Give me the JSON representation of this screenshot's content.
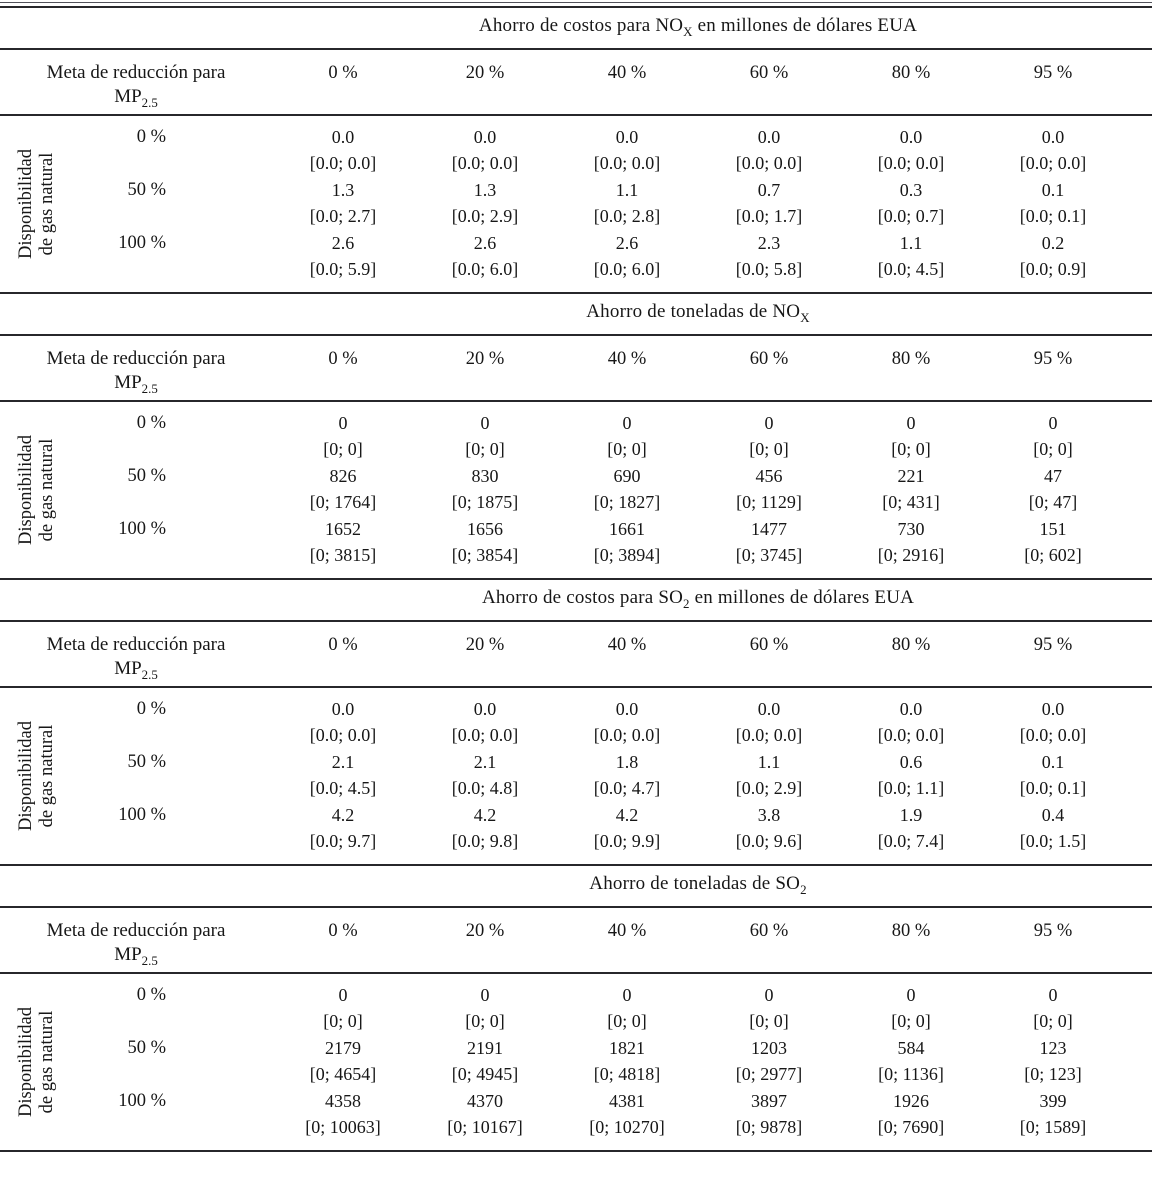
{
  "table": {
    "side_label": {
      "line1": "Disponibilidad",
      "line2": "de gas natural"
    },
    "row_header": {
      "line1": "Meta de reducción para",
      "base": "MP",
      "sub": "2.5"
    },
    "columns": [
      "0 %",
      "20 %",
      "40 %",
      "60 %",
      "80 %",
      "95 %"
    ],
    "sections": [
      {
        "id": "ahorro-costos-nox",
        "title": {
          "pre": "Ahorro de costos para NO",
          "sub": "X",
          "post": " en millones de dólares EUA"
        },
        "rows": [
          {
            "label": "0 %",
            "cells": [
              {
                "value": "0.0",
                "range": "[0.0; 0.0]"
              },
              {
                "value": "0.0",
                "range": "[0.0; 0.0]"
              },
              {
                "value": "0.0",
                "range": "[0.0; 0.0]"
              },
              {
                "value": "0.0",
                "range": "[0.0; 0.0]"
              },
              {
                "value": "0.0",
                "range": "[0.0; 0.0]"
              },
              {
                "value": "0.0",
                "range": "[0.0; 0.0]"
              }
            ]
          },
          {
            "label": "50 %",
            "cells": [
              {
                "value": "1.3",
                "range": "[0.0; 2.7]"
              },
              {
                "value": "1.3",
                "range": "[0.0; 2.9]"
              },
              {
                "value": "1.1",
                "range": "[0.0; 2.8]"
              },
              {
                "value": "0.7",
                "range": "[0.0; 1.7]"
              },
              {
                "value": "0.3",
                "range": "[0.0; 0.7]"
              },
              {
                "value": "0.1",
                "range": "[0.0; 0.1]"
              }
            ]
          },
          {
            "label": "100 %",
            "cells": [
              {
                "value": "2.6",
                "range": "[0.0; 5.9]"
              },
              {
                "value": "2.6",
                "range": "[0.0; 6.0]"
              },
              {
                "value": "2.6",
                "range": "[0.0; 6.0]"
              },
              {
                "value": "2.3",
                "range": "[0.0; 5.8]"
              },
              {
                "value": "1.1",
                "range": "[0.0; 4.5]"
              },
              {
                "value": "0.2",
                "range": "[0.0; 0.9]"
              }
            ]
          }
        ]
      },
      {
        "id": "ahorro-toneladas-nox",
        "title": {
          "pre": "Ahorro de toneladas de NO",
          "sub": "X",
          "post": ""
        },
        "rows": [
          {
            "label": "0 %",
            "cells": [
              {
                "value": "0",
                "range": "[0; 0]"
              },
              {
                "value": "0",
                "range": "[0; 0]"
              },
              {
                "value": "0",
                "range": "[0; 0]"
              },
              {
                "value": "0",
                "range": "[0; 0]"
              },
              {
                "value": "0",
                "range": "[0; 0]"
              },
              {
                "value": "0",
                "range": "[0; 0]"
              }
            ]
          },
          {
            "label": "50 %",
            "cells": [
              {
                "value": "826",
                "range": "[0; 1764]"
              },
              {
                "value": "830",
                "range": "[0; 1875]"
              },
              {
                "value": "690",
                "range": "[0; 1827]"
              },
              {
                "value": "456",
                "range": "[0; 1129]"
              },
              {
                "value": "221",
                "range": "[0; 431]"
              },
              {
                "value": "47",
                "range": "[0; 47]"
              }
            ]
          },
          {
            "label": "100 %",
            "cells": [
              {
                "value": "1652",
                "range": "[0; 3815]"
              },
              {
                "value": "1656",
                "range": "[0; 3854]"
              },
              {
                "value": "1661",
                "range": "[0; 3894]"
              },
              {
                "value": "1477",
                "range": "[0; 3745]"
              },
              {
                "value": "730",
                "range": "[0; 2916]"
              },
              {
                "value": "151",
                "range": "[0; 602]"
              }
            ]
          }
        ]
      },
      {
        "id": "ahorro-costos-so2",
        "title": {
          "pre": "Ahorro de costos para SO",
          "sub": "2",
          "post": " en millones de dólares EUA"
        },
        "rows": [
          {
            "label": "0 %",
            "cells": [
              {
                "value": "0.0",
                "range": "[0.0; 0.0]"
              },
              {
                "value": "0.0",
                "range": "[0.0; 0.0]"
              },
              {
                "value": "0.0",
                "range": "[0.0; 0.0]"
              },
              {
                "value": "0.0",
                "range": "[0.0; 0.0]"
              },
              {
                "value": "0.0",
                "range": "[0.0; 0.0]"
              },
              {
                "value": "0.0",
                "range": "[0.0; 0.0]"
              }
            ]
          },
          {
            "label": "50 %",
            "cells": [
              {
                "value": "2.1",
                "range": "[0.0; 4.5]"
              },
              {
                "value": "2.1",
                "range": "[0.0; 4.8]"
              },
              {
                "value": "1.8",
                "range": "[0.0; 4.7]"
              },
              {
                "value": "1.1",
                "range": "[0.0; 2.9]"
              },
              {
                "value": "0.6",
                "range": "[0.0; 1.1]"
              },
              {
                "value": "0.1",
                "range": "[0.0; 0.1]"
              }
            ]
          },
          {
            "label": "100 %",
            "cells": [
              {
                "value": "4.2",
                "range": "[0.0; 9.7]"
              },
              {
                "value": "4.2",
                "range": "[0.0; 9.8]"
              },
              {
                "value": "4.2",
                "range": "[0.0; 9.9]"
              },
              {
                "value": "3.8",
                "range": "[0.0; 9.6]"
              },
              {
                "value": "1.9",
                "range": "[0.0; 7.4]"
              },
              {
                "value": "0.4",
                "range": "[0.0; 1.5]"
              }
            ]
          }
        ]
      },
      {
        "id": "ahorro-toneladas-so2",
        "title": {
          "pre": "Ahorro de toneladas de SO",
          "sub": "2",
          "post": ""
        },
        "rows": [
          {
            "label": "0 %",
            "cells": [
              {
                "value": "0",
                "range": "[0; 0]"
              },
              {
                "value": "0",
                "range": "[0; 0]"
              },
              {
                "value": "0",
                "range": "[0; 0]"
              },
              {
                "value": "0",
                "range": "[0; 0]"
              },
              {
                "value": "0",
                "range": "[0; 0]"
              },
              {
                "value": "0",
                "range": "[0; 0]"
              }
            ]
          },
          {
            "label": "50 %",
            "cells": [
              {
                "value": "2179",
                "range": "[0; 4654]"
              },
              {
                "value": "2191",
                "range": "[0; 4945]"
              },
              {
                "value": "1821",
                "range": "[0; 4818]"
              },
              {
                "value": "1203",
                "range": "[0; 2977]"
              },
              {
                "value": "584",
                "range": "[0; 1136]"
              },
              {
                "value": "123",
                "range": "[0; 123]"
              }
            ]
          },
          {
            "label": "100 %",
            "cells": [
              {
                "value": "4358",
                "range": "[0; 10063]"
              },
              {
                "value": "4370",
                "range": "[0; 10167]"
              },
              {
                "value": "4381",
                "range": "[0; 10270]"
              },
              {
                "value": "3897",
                "range": "[0; 9878]"
              },
              {
                "value": "1926",
                "range": "[0; 7690]"
              },
              {
                "value": "399",
                "range": "[0; 1589]"
              }
            ]
          }
        ]
      }
    ]
  }
}
